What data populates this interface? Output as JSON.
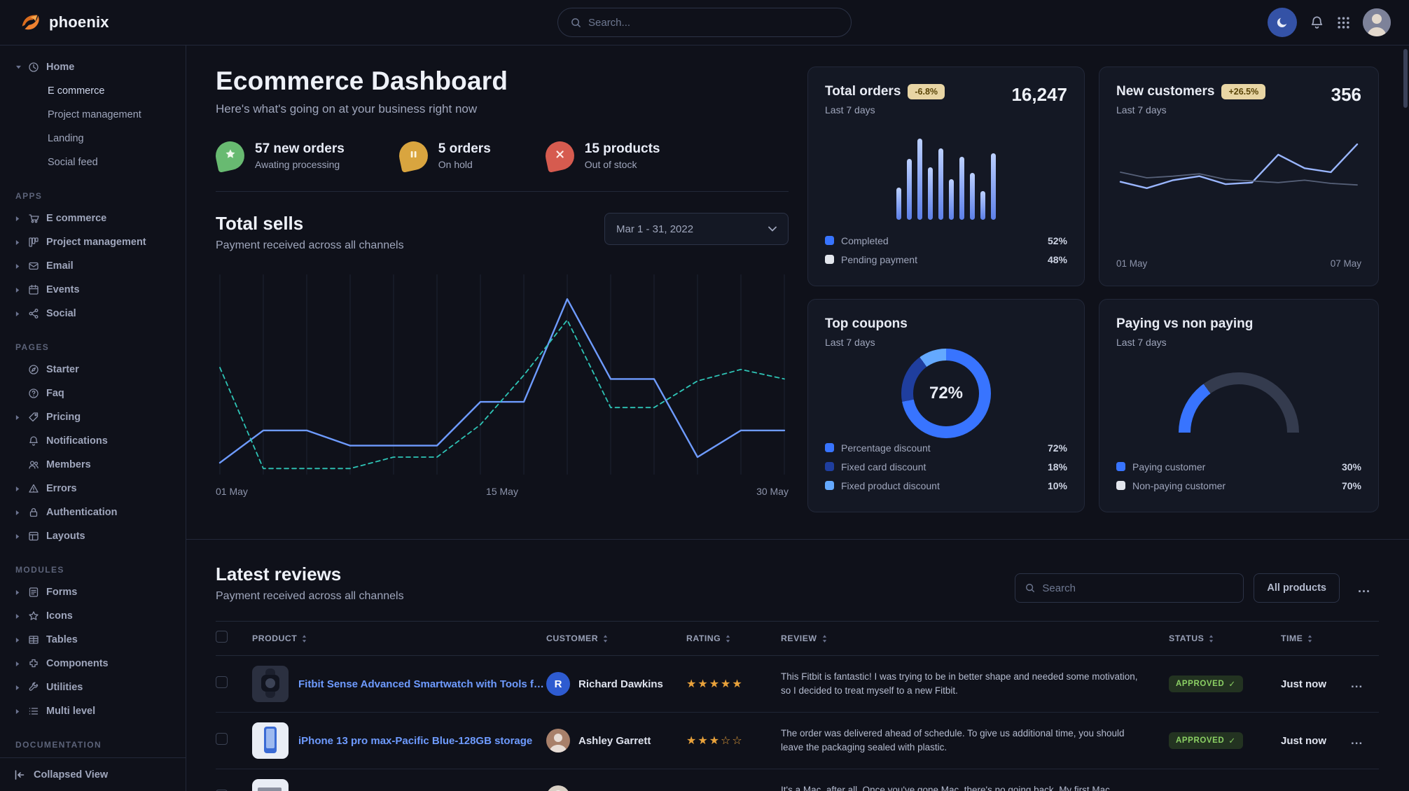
{
  "theme": {
    "accent": "#3874ff",
    "link": "#6e9bff",
    "success": "#8bd064",
    "star": "#e9a23b",
    "card_bg": "#141824"
  },
  "navbar": {
    "brand": "phoenix",
    "search": {
      "placeholder": "Search..."
    },
    "icons": [
      "moon-icon",
      "bell-icon",
      "apps-grid-icon",
      "user-avatar"
    ]
  },
  "sidebar": {
    "home": {
      "label": "Home",
      "icon": "clock",
      "expanded": true,
      "children": [
        {
          "label": "E commerce",
          "active": true
        },
        {
          "label": "Project management",
          "active": false
        },
        {
          "label": "Landing",
          "active": false
        },
        {
          "label": "Social feed",
          "active": false
        }
      ]
    },
    "sections": [
      {
        "title": "APPS",
        "items": [
          {
            "label": "E commerce",
            "icon": "cart",
            "expandable": true
          },
          {
            "label": "Project management",
            "icon": "kanban",
            "expandable": true
          },
          {
            "label": "Email",
            "icon": "envelope",
            "expandable": true
          },
          {
            "label": "Events",
            "icon": "calendar",
            "expandable": true
          },
          {
            "label": "Social",
            "icon": "share",
            "expandable": true
          }
        ]
      },
      {
        "title": "PAGES",
        "items": [
          {
            "label": "Starter",
            "icon": "compass",
            "expandable": false
          },
          {
            "label": "Faq",
            "icon": "question",
            "expandable": false
          },
          {
            "label": "Pricing",
            "icon": "tag",
            "expandable": true
          },
          {
            "label": "Notifications",
            "icon": "bell",
            "expandable": false
          },
          {
            "label": "Members",
            "icon": "users",
            "expandable": false
          },
          {
            "label": "Errors",
            "icon": "warning",
            "expandable": true
          },
          {
            "label": "Authentication",
            "icon": "lock",
            "expandable": true
          },
          {
            "label": "Layouts",
            "icon": "layout",
            "expandable": true
          }
        ]
      },
      {
        "title": "MODULES",
        "items": [
          {
            "label": "Forms",
            "icon": "form",
            "expandable": true
          },
          {
            "label": "Icons",
            "icon": "star",
            "expandable": true
          },
          {
            "label": "Tables",
            "icon": "table",
            "expandable": true
          },
          {
            "label": "Components",
            "icon": "puzzle",
            "expandable": true
          },
          {
            "label": "Utilities",
            "icon": "wrench",
            "expandable": true
          },
          {
            "label": "Multi level",
            "icon": "list",
            "expandable": true
          }
        ]
      },
      {
        "title": "DOCUMENTATION",
        "items": []
      }
    ],
    "footer": {
      "label": "Collapsed View",
      "icon": "collapse-left-icon"
    }
  },
  "header": {
    "title": "Ecommerce Dashboard",
    "subtitle": "Here's what's going on at your business right now"
  },
  "stats": [
    {
      "icon": "star",
      "color": "#68ba71",
      "glyph_color": "#eef8ec",
      "value": "57 new orders",
      "caption": "Awating processing"
    },
    {
      "icon": "pause",
      "color": "#d9a53f",
      "glyph_color": "#fdf4de",
      "value": "5 orders",
      "caption": "On hold"
    },
    {
      "icon": "x",
      "color": "#d65b4f",
      "glyph_color": "#fdeae7",
      "value": "15 products",
      "caption": "Out of stock"
    }
  ],
  "total_sells": {
    "title": "Total sells",
    "subtitle": "Payment received across all channels",
    "date_range": "Mar 1 - 31, 2022"
  },
  "cards": {
    "total_orders": {
      "title": "Total orders",
      "badge": "-6.8%",
      "period": "Last 7 days",
      "value": "16,247",
      "legend": [
        {
          "label": "Completed",
          "value": "52%",
          "color": "#3874ff"
        },
        {
          "label": "Pending payment",
          "value": "48%",
          "color": "#e3e6ed"
        }
      ]
    },
    "new_customers": {
      "title": "New customers",
      "badge": "+26.5%",
      "period": "Last 7 days",
      "value": "356"
    },
    "top_coupons": {
      "title": "Top coupons",
      "period": "Last 7 days",
      "center_value": "72%",
      "legend": [
        {
          "label": "Percentage discount",
          "value": "72%",
          "color": "#3874ff"
        },
        {
          "label": "Fixed card discount",
          "value": "18%",
          "color": "#1f3e9e"
        },
        {
          "label": "Fixed product discount",
          "value": "10%",
          "color": "#64a9ff"
        }
      ]
    },
    "paying": {
      "title": "Paying vs non paying",
      "period": "Last 7 days",
      "legend": [
        {
          "label": "Paying customer",
          "value": "30%",
          "color": "#3874ff"
        },
        {
          "label": "Non-paying customer",
          "value": "70%",
          "color": "#e3e6ed"
        }
      ]
    }
  },
  "chart_data": [
    {
      "name": "total_sells",
      "type": "line",
      "title": "Total sells",
      "x_labels": [
        "01 May",
        "15 May",
        "30 May"
      ],
      "value_scale": "percent-of-chart-height (no y axis shown)",
      "grid": "vertical",
      "series": [
        {
          "name": "current period",
          "color": "#6e9bff",
          "dash": false,
          "values": [
            4,
            21,
            21,
            13,
            13,
            13,
            36,
            36,
            90,
            48,
            48,
            7,
            21,
            21
          ]
        },
        {
          "name": "previous period",
          "color": "#2ec4b6",
          "dash": true,
          "values": [
            54,
            1,
            1,
            1,
            7,
            7,
            24,
            50,
            79,
            33,
            33,
            47,
            53,
            48
          ]
        }
      ]
    },
    {
      "name": "total_orders_bars",
      "type": "bar",
      "title": "Total orders",
      "value_scale": "percent-of-chart-height (no axis shown)",
      "values": [
        40,
        75,
        100,
        65,
        88,
        50,
        78,
        58,
        35,
        82
      ]
    },
    {
      "name": "new_customers",
      "type": "line",
      "title": "New customers",
      "x_labels": [
        "01 May",
        "07 May"
      ],
      "value_scale": "percent-of-chart-height (no y axis shown)",
      "series": [
        {
          "name": "current period",
          "color": "#9ab6ff",
          "dash": false,
          "values": [
            38,
            30,
            40,
            45,
            35,
            37,
            72,
            55,
            50,
            85
          ]
        },
        {
          "name": "previous period",
          "color": "#566078",
          "dash": false,
          "values": [
            50,
            43,
            45,
            48,
            41,
            39,
            37,
            40,
            36,
            34
          ]
        }
      ]
    },
    {
      "name": "top_coupons_donut",
      "type": "pie",
      "title": "Top coupons",
      "center_label": "72%",
      "slices": [
        {
          "label": "Percentage discount",
          "value": 72,
          "color": "#3874ff"
        },
        {
          "label": "Fixed card discount",
          "value": 18,
          "color": "#1f3e9e"
        },
        {
          "label": "Fixed product discount",
          "value": 10,
          "color": "#64a9ff"
        }
      ]
    },
    {
      "name": "paying_gauge",
      "type": "pie",
      "title": "Paying vs non paying",
      "shape": "half-donut",
      "slices": [
        {
          "label": "Paying customer",
          "value": 30,
          "color": "#3874ff"
        },
        {
          "label": "Non-paying customer",
          "value": 70,
          "color": "#343b4e"
        }
      ]
    }
  ],
  "reviews": {
    "title": "Latest reviews",
    "subtitle": "Payment received across all channels",
    "search_placeholder": "Search",
    "filter_button": "All products",
    "more_button": "...",
    "columns": [
      "PRODUCT",
      "CUSTOMER",
      "RATING",
      "REVIEW",
      "STATUS",
      "TIME"
    ],
    "rows": [
      {
        "product": "Fitbit Sense Advanced Smartwatch with Tools fo...",
        "thumb": {
          "shape": "watch",
          "bg": "#2b3040",
          "fg": "#11141f"
        },
        "customer": {
          "name": "Richard Dawkins",
          "avatar": {
            "type": "initial",
            "text": "R",
            "bg": "#2e5bd0"
          }
        },
        "rating": 5,
        "review": "This Fitbit is fantastic! I was trying to be in better shape and needed some motivation, so I decided to treat myself to a new Fitbit.",
        "status": "APPROVED",
        "time": "Just now"
      },
      {
        "product": "iPhone 13 pro max-Pacific Blue-128GB storage",
        "thumb": {
          "shape": "phone",
          "bg": "#e9edf5",
          "fg": "#3a6ad4"
        },
        "customer": {
          "name": "Ashley Garrett",
          "avatar": {
            "type": "photo",
            "bg": "#a8806a"
          }
        },
        "rating": 3,
        "review": "The order was delivered ahead of schedule. To give us additional time, you should leave the packaging sealed with plastic.",
        "status": "APPROVED",
        "time": "Just now"
      },
      {
        "product": "",
        "thumb": {
          "shape": "laptop",
          "bg": "#e9edf5",
          "fg": "#8a8f9e"
        },
        "customer": {
          "name": "",
          "avatar": {
            "type": "photo",
            "bg": "#d8cfc4"
          }
        },
        "rating": null,
        "review": "It's a Mac, after all. Once you've gone Mac, there's no going back. My first Mac lasted...",
        "status": "",
        "time": ""
      }
    ]
  }
}
